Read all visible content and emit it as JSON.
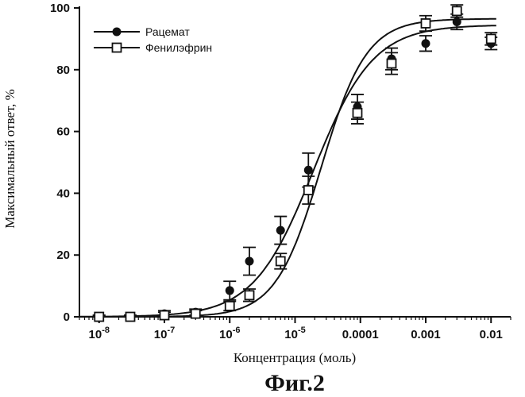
{
  "chart_data": {
    "type": "scatter",
    "xscale": "log",
    "xlim": [
      5e-09,
      0.02
    ],
    "ylim": [
      0,
      100
    ],
    "xlabel": "Концентрация (моль)",
    "ylabel": "Максимальный ответ, %",
    "figure_caption": "Фиг.2",
    "x_ticks": [
      {
        "value": 1e-08,
        "base": "10",
        "exp": "-8"
      },
      {
        "value": 1e-07,
        "base": "10",
        "exp": "-7"
      },
      {
        "value": 1e-06,
        "base": "10",
        "exp": "-6"
      },
      {
        "value": 1e-05,
        "base": "10",
        "exp": "-5"
      },
      {
        "value": 0.0001,
        "base": "0.0001",
        "exp": ""
      },
      {
        "value": 0.001,
        "base": "0.001",
        "exp": ""
      },
      {
        "value": 0.01,
        "base": "0.01",
        "exp": ""
      }
    ],
    "y_ticks": [
      0,
      20,
      40,
      60,
      80,
      100
    ],
    "legend": "top-left",
    "series": [
      {
        "name": "Рацемат",
        "marker": "filled-circle",
        "x": [
          1e-08,
          3e-08,
          1e-07,
          3e-07,
          1e-06,
          2e-06,
          6e-06,
          1.6e-05,
          9e-05,
          0.0003,
          0.001,
          0.003,
          0.01
        ],
        "y": [
          0,
          0,
          1,
          1.5,
          8.5,
          18,
          28,
          47.5,
          68,
          83.5,
          88.5,
          95.5,
          88.5
        ],
        "err": [
          0.5,
          0.5,
          1,
          1,
          3,
          4.5,
          4.5,
          5.5,
          4,
          3.5,
          2.5,
          2.5,
          2
        ]
      },
      {
        "name": "Фенилэфрин",
        "marker": "open-square",
        "x": [
          1e-08,
          3e-08,
          1e-07,
          3e-07,
          1e-06,
          2e-06,
          6e-06,
          1.6e-05,
          9e-05,
          0.0003,
          0.001,
          0.003,
          0.01
        ],
        "y": [
          0,
          0,
          0.5,
          1,
          3.5,
          7,
          18,
          41,
          66,
          82,
          95,
          99,
          90
        ],
        "err": [
          0.5,
          0.5,
          1,
          1,
          1.5,
          2,
          2.5,
          4.5,
          3.5,
          3.5,
          2.5,
          2,
          2
        ]
      }
    ],
    "fit_curves": [
      {
        "series": "Рацемат",
        "bottom": 0,
        "top": 94.5,
        "ec50": 1.9e-05,
        "hill": 0.95
      },
      {
        "series": "Фенилэфрин",
        "bottom": 0,
        "top": 96.5,
        "ec50": 2.5e-05,
        "hill": 1.25
      }
    ]
  }
}
